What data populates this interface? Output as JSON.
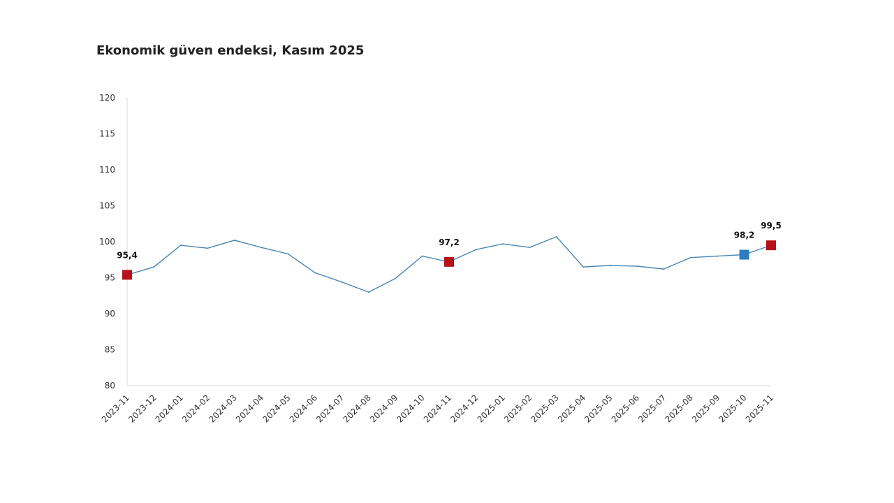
{
  "chart_data": {
    "type": "line",
    "title": "Ekonomik güven endeksi, Kasım 2025",
    "xlabel": "",
    "ylabel": "",
    "ylim": [
      80,
      120
    ],
    "yticks": [
      80,
      85,
      90,
      95,
      100,
      105,
      110,
      115,
      120
    ],
    "grid": false,
    "categories": [
      "2023-11",
      "2023-12",
      "2024-01",
      "2024-02",
      "2024-03",
      "2024-04",
      "2024-05",
      "2024-06",
      "2024-07",
      "2024-08",
      "2024-09",
      "2024-10",
      "2024-11",
      "2024-12",
      "2025-01",
      "2025-02",
      "2025-03",
      "2025-04",
      "2025-05",
      "2025-06",
      "2025-07",
      "2025-08",
      "2025-09",
      "2025-10",
      "2025-11"
    ],
    "series": [
      {
        "name": "Ekonomik güven endeksi",
        "color": "#4a86b4",
        "values": [
          95.4,
          96.5,
          99.5,
          99.1,
          100.2,
          99.2,
          98.3,
          95.7,
          94.4,
          93.0,
          94.9,
          98.0,
          97.2,
          98.9,
          99.7,
          99.2,
          100.7,
          96.5,
          96.7,
          96.6,
          96.2,
          97.8,
          98.0,
          98.2,
          99.5
        ]
      }
    ],
    "highlighted_points": [
      {
        "index": 0,
        "label": "95,4",
        "color": "#b5121b"
      },
      {
        "index": 12,
        "label": "97,2",
        "color": "#b5121b"
      },
      {
        "index": 23,
        "label": "98,2",
        "color": "#2e7bbf"
      },
      {
        "index": 24,
        "label": "99,5",
        "color": "#b5121b"
      }
    ]
  }
}
